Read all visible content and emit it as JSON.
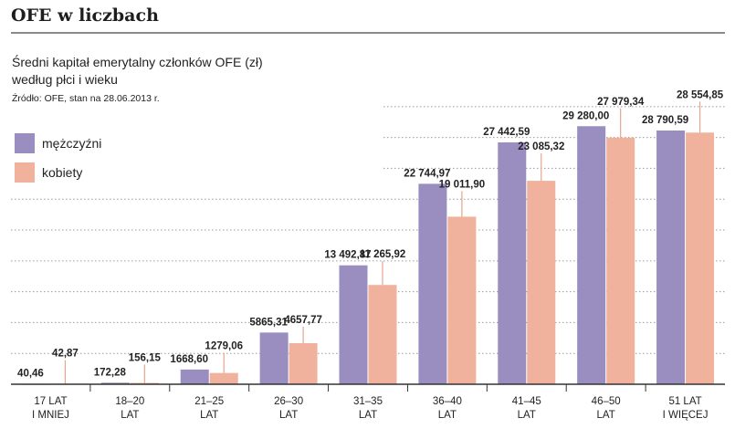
{
  "header": {
    "title": "OFE w liczbach",
    "subtitle_line1": "Średni kapitał emerytalny członków OFE (zł)",
    "subtitle_line2": "według płci i wieku",
    "source": "Źródło: OFE, stan na 28.06.2013 r."
  },
  "legend": [
    {
      "label": "mężczyźni",
      "color": "#9a8dbf"
    },
    {
      "label": "kobiety",
      "color": "#f0b29c"
    }
  ],
  "chart_data": {
    "type": "bar",
    "title": "Średni kapitał emerytalny członków OFE (zł) według płci i wieku",
    "categories": [
      [
        "17 LAT",
        "I MNIEJ"
      ],
      [
        "18–20",
        "LAT"
      ],
      [
        "21–25",
        "LAT"
      ],
      [
        "26–30",
        "LAT"
      ],
      [
        "31–35",
        "LAT"
      ],
      [
        "36–40",
        "LAT"
      ],
      [
        "41–45",
        "LAT"
      ],
      [
        "46–50",
        "LAT"
      ],
      [
        "51 LAT",
        "I WIĘCEJ"
      ]
    ],
    "series": [
      {
        "name": "mężczyźni",
        "color": "#9a8dbf",
        "values": [
          40.46,
          172.28,
          1668.6,
          5865.31,
          13492.87,
          22744.97,
          27442.59,
          29280.0,
          28790.59
        ],
        "labels": [
          "40,46",
          "172,28",
          "1668,60",
          "5865,31",
          "13 492,87",
          "22 744,97",
          "27 442,59",
          "29 280,00",
          "28 790,59"
        ]
      },
      {
        "name": "kobiety",
        "color": "#f0b29c",
        "values": [
          42.87,
          156.15,
          1279.06,
          4657.77,
          11265.92,
          19011.9,
          23085.32,
          27979.34,
          28554.85
        ],
        "labels": [
          "42,87",
          "156,15",
          "1279,06",
          "4657,77",
          "11 265,92",
          "19 011,90",
          "23 085,32",
          "27 979,34",
          "28 554,85"
        ]
      }
    ],
    "ylim": [
      0,
      32000
    ],
    "grid": true,
    "xlabel": "",
    "ylabel": ""
  }
}
